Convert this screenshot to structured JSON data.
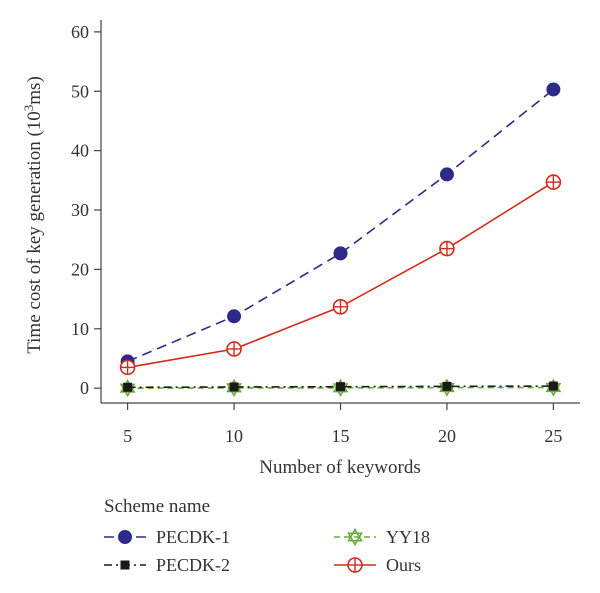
{
  "chart_data": {
    "type": "line",
    "xlabel": "Number of keywords",
    "ylabel_prefix": "Time cost of key generation (10",
    "ylabel_sup": "3",
    "ylabel_suffix": "ms)",
    "x": [
      5,
      10,
      15,
      20,
      25
    ],
    "x_ticks": [
      "5",
      "10",
      "15",
      "20",
      "25"
    ],
    "y_ticks": [
      "0",
      "10",
      "20",
      "30",
      "40",
      "50",
      "60"
    ],
    "xlim": [
      3.75,
      26.25
    ],
    "ylim": [
      -2.5,
      62
    ],
    "grid": false,
    "legend": {
      "title": "Scheme name",
      "placement": "bottom"
    },
    "series": [
      {
        "name": "PECDK-1",
        "values": [
          4.5,
          12.1,
          22.7,
          36.0,
          50.3
        ],
        "color": "#2e2a8a",
        "dash": "10,6",
        "marker": "filled-circle"
      },
      {
        "name": "PECDK-2",
        "values": [
          0.15,
          0.2,
          0.25,
          0.3,
          0.35
        ],
        "color": "#1a1a1a",
        "dash": "8,4,2,4",
        "marker": "filled-square"
      },
      {
        "name": "YY18",
        "values": [
          0.0,
          0.05,
          0.05,
          0.1,
          0.1
        ],
        "color": "#6aaa3a",
        "dash": "6,4",
        "marker": "star-of-david"
      },
      {
        "name": "Ours",
        "values": [
          3.5,
          6.6,
          13.7,
          23.5,
          34.7
        ],
        "color": "#d42a1a",
        "dash": "",
        "marker": "circle-plus"
      }
    ]
  }
}
